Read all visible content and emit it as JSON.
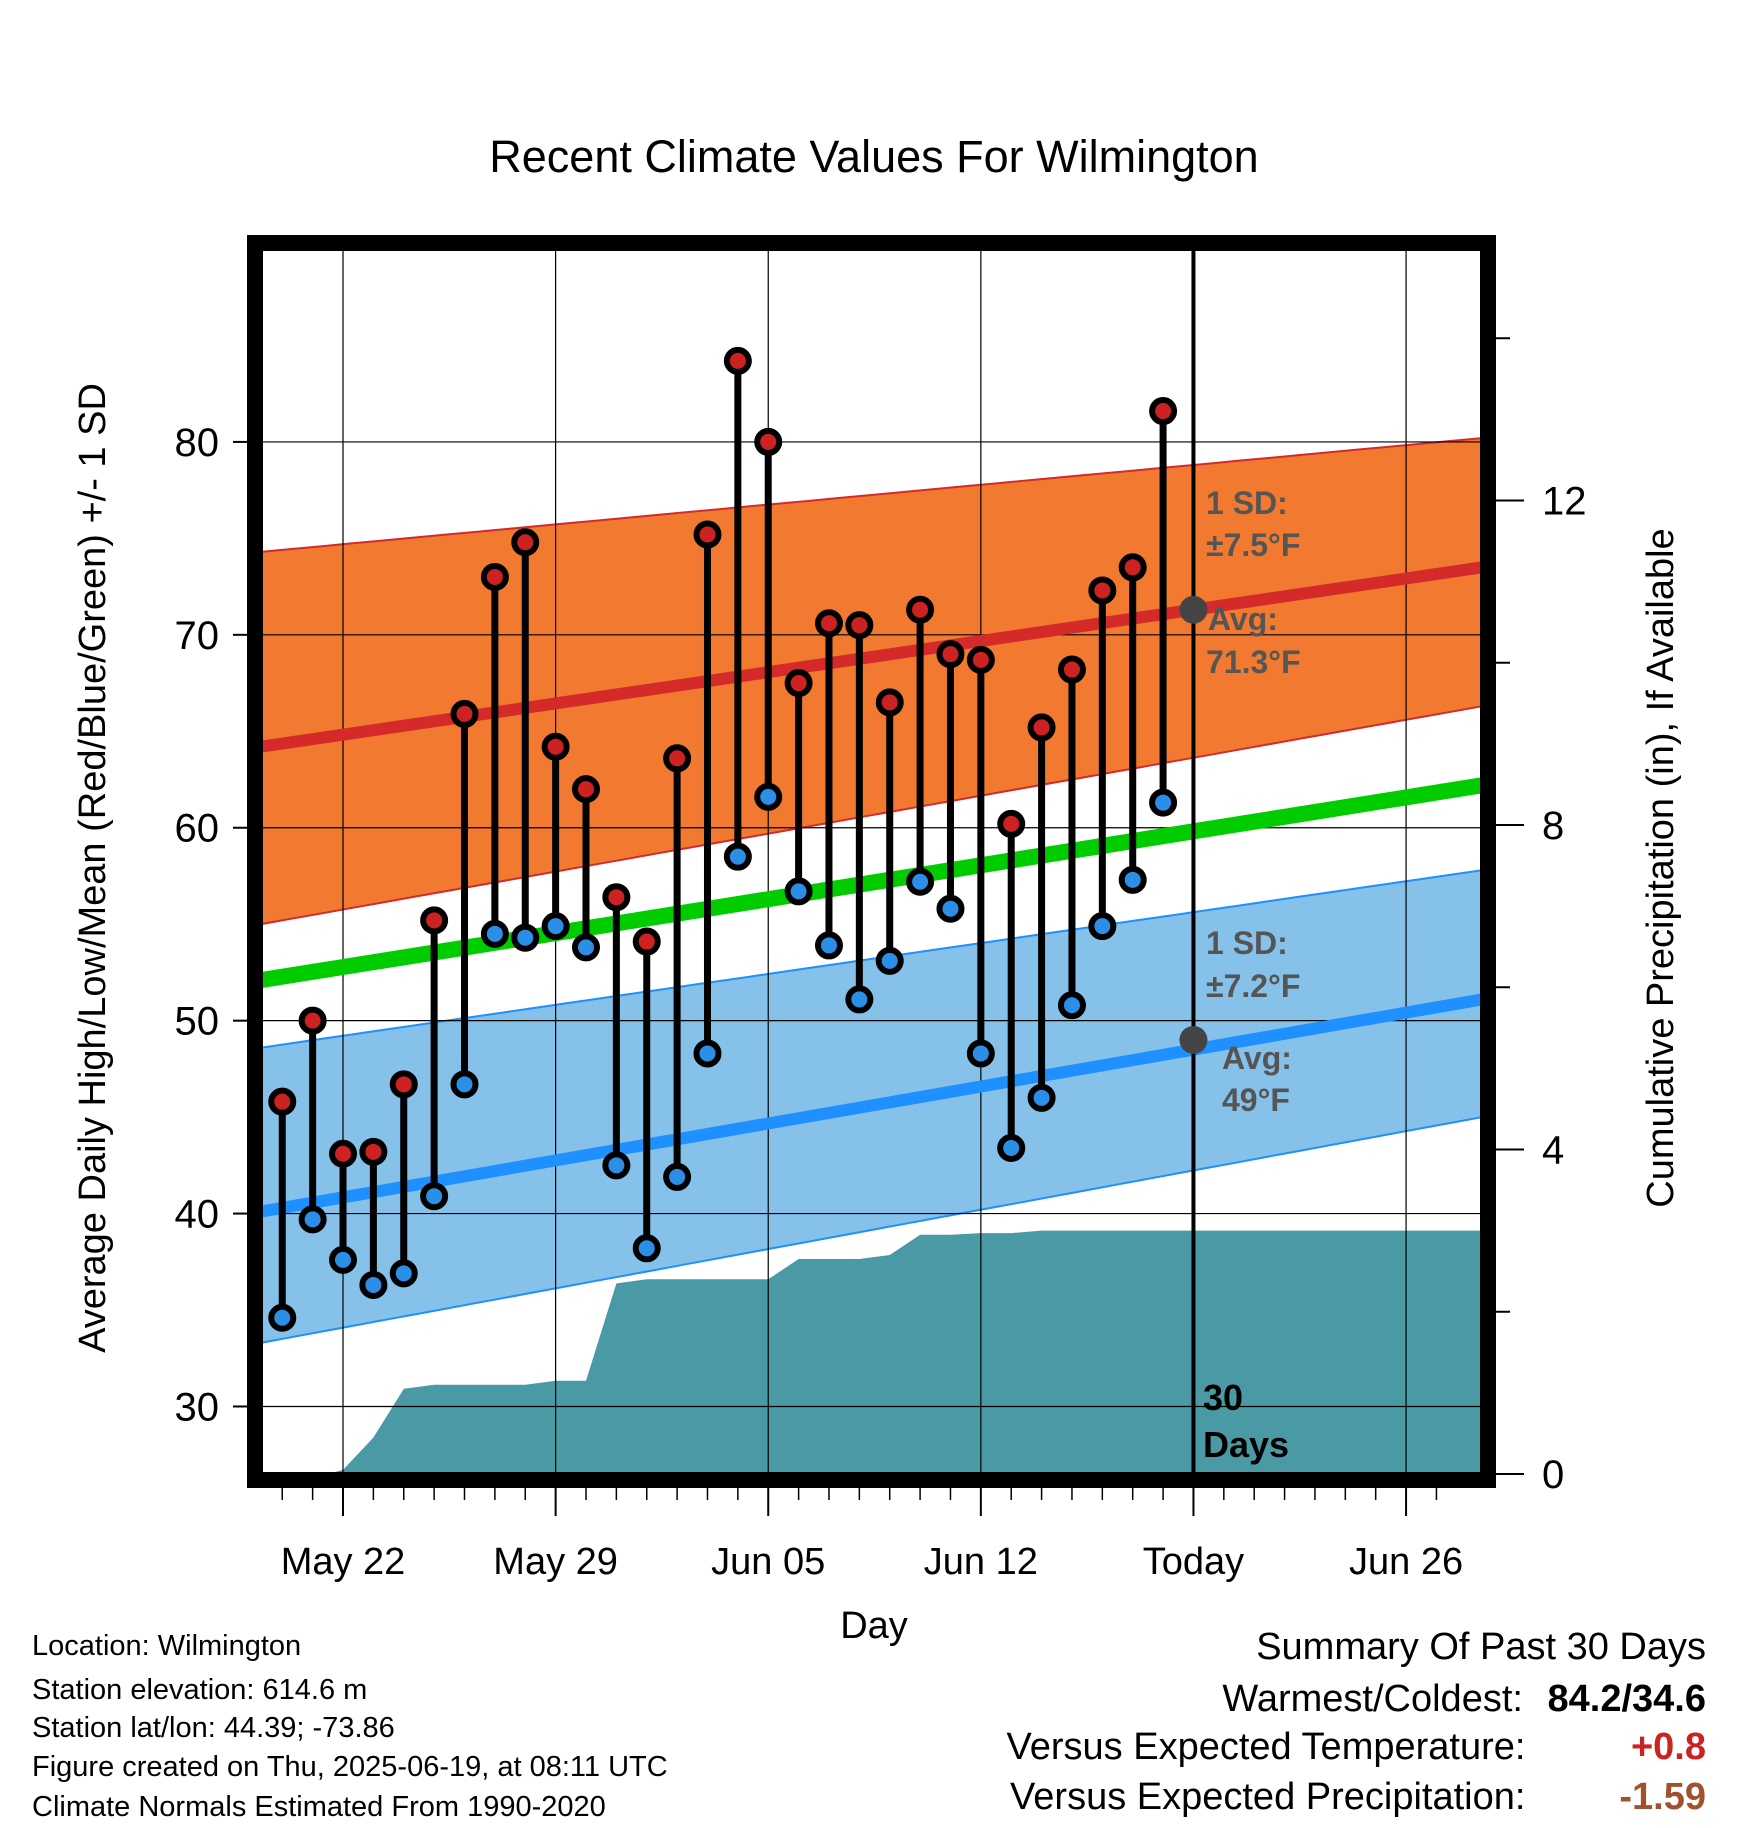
{
  "chart_data": {
    "type": "line",
    "title": "Recent Climate Values For Wilmington",
    "xlabel": "Day",
    "ylabel": "Average Daily High/Low/Mean (Red/Blue/Green) +/- 1 SD",
    "y2label": "Cumulative Precipitation (in), If Available",
    "x_tick_labels": [
      "May 22",
      "May 29",
      "Jun 05",
      "Jun 12",
      "Today",
      "Jun 26"
    ],
    "x_tick_days": [
      2,
      9,
      16,
      23,
      30,
      37
    ],
    "xlim": [
      -0.7,
      39.5
    ],
    "ylim": [
      26.5,
      90
    ],
    "y_ticks": [
      30,
      40,
      50,
      60,
      70,
      80
    ],
    "y2lim": [
      0,
      15.1
    ],
    "y2_ticks": [
      0,
      4,
      8,
      12
    ],
    "grid": true,
    "days": [
      0,
      1,
      2,
      3,
      4,
      5,
      6,
      7,
      8,
      9,
      10,
      11,
      12,
      13,
      14,
      15,
      16,
      17,
      18,
      19,
      20,
      21,
      22,
      23,
      24,
      25,
      26,
      27,
      28,
      29
    ],
    "series": [
      {
        "name": "High",
        "color": "#cc2222",
        "values": [
          45.8,
          50.0,
          43.1,
          43.2,
          46.7,
          55.2,
          65.9,
          73.0,
          74.8,
          64.2,
          62.0,
          56.4,
          54.1,
          63.6,
          75.2,
          84.2,
          80.0,
          67.5,
          70.6,
          70.5,
          66.5,
          71.3,
          69.0,
          68.7,
          60.2,
          65.2,
          68.2,
          72.3,
          73.5,
          81.6
        ]
      },
      {
        "name": "Low",
        "color": "#2b8fe8",
        "values": [
          34.6,
          39.7,
          37.6,
          36.3,
          36.9,
          40.9,
          46.7,
          54.5,
          54.3,
          54.9,
          53.8,
          42.5,
          38.2,
          41.9,
          48.3,
          58.5,
          61.6,
          56.7,
          53.9,
          51.1,
          53.1,
          57.2,
          55.8,
          48.3,
          43.4,
          46.0,
          50.8,
          54.9,
          57.3,
          61.3
        ]
      }
    ],
    "normals": {
      "high_avg": [
        64.2,
        73.5
      ],
      "high_sd_lower": [
        55.0,
        66.3
      ],
      "high_sd_upper": [
        74.3,
        80.2
      ],
      "mean_avg": [
        52.1,
        62.2
      ],
      "low_avg": [
        40.1,
        51.1
      ],
      "low_sd_lower": [
        33.3,
        45.0
      ],
      "low_sd_upper": [
        48.6,
        57.8
      ],
      "x_range": [
        -0.7,
        39.5
      ]
    },
    "precip_cumulative": {
      "days": [
        1.5,
        2,
        3,
        4,
        5,
        6,
        7,
        8,
        9,
        10,
        11,
        12,
        13,
        14,
        15,
        16,
        17,
        18,
        19,
        20,
        21,
        22,
        23,
        24,
        25,
        26,
        27,
        28,
        29,
        30,
        39.5
      ],
      "values": [
        0,
        0.05,
        0.45,
        1.05,
        1.1,
        1.1,
        1.1,
        1.1,
        1.15,
        1.15,
        2.35,
        2.4,
        2.4,
        2.4,
        2.4,
        2.4,
        2.65,
        2.65,
        2.65,
        2.7,
        2.95,
        2.95,
        2.97,
        2.97,
        3.0,
        3.0,
        3.0,
        3.0,
        3.0,
        3.0,
        3.0
      ]
    },
    "today_day": 30,
    "today_high_avg": 71.3,
    "today_low_avg": 49,
    "annotations": {
      "high_sd_1": "1 SD:",
      "high_sd_2": "±7.5°F",
      "high_avg_1": "Avg:",
      "high_avg_2": "71.3°F",
      "low_sd_1": "1 SD:",
      "low_sd_2": "±7.2°F",
      "low_avg_1": "Avg:",
      "low_avg_2": "49°F",
      "period_1": "30",
      "period_2": "Days"
    },
    "colors": {
      "high_band": "#f27a30",
      "high_line": "#d42a2a",
      "mean_line": "#00cc00",
      "low_band": "#85c1e9",
      "low_line": "#1e90ff",
      "precip_fill": "#4a9aa5",
      "annotation_text": "#555555",
      "today_marker": "#444444"
    },
    "legend": "none"
  },
  "footer": {
    "location": "Location: Wilmington",
    "elevation": "Station elevation: 614.6 m",
    "latlon": "Station lat/lon: 44.39; -73.86",
    "created": "Figure created on Thu, 2025-06-19, at 08:11 UTC",
    "normals": "Climate Normals Estimated From 1990-2020"
  },
  "summary": {
    "title": "Summary Of Past 30 Days",
    "warm_cold_label": "Warmest/Coldest:",
    "warm_cold_value": "84.2/34.6",
    "temp_label": "Versus Expected Temperature:",
    "temp_value": "+0.8",
    "temp_color": "#cc2222",
    "precip_label": "Versus Expected Precipitation:",
    "precip_value": "-1.59",
    "precip_color": "#a0522d"
  }
}
